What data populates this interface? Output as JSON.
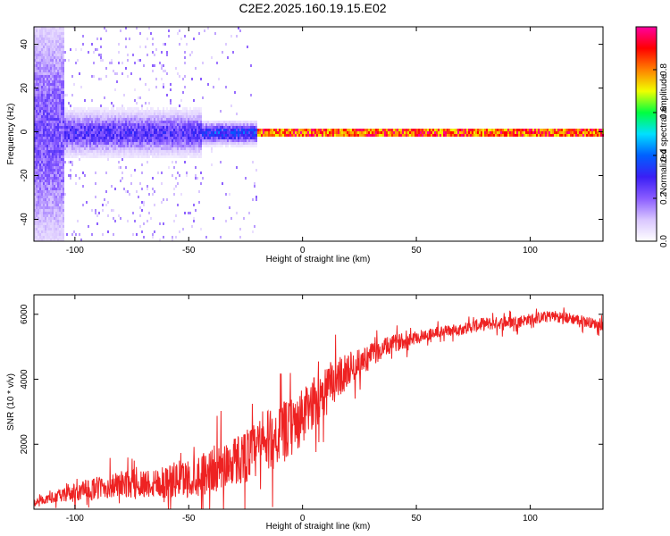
{
  "title": "C2E2.2025.160.19.15.E02",
  "colors": {
    "snr_line": "#ee2222",
    "colormap": [
      "#ffffff",
      "#d9c6ff",
      "#8a5cff",
      "#3a1ff5",
      "#0060ff",
      "#00e0ff",
      "#00ff40",
      "#f0ff00",
      "#ff8000",
      "#ff0000",
      "#ff00a0"
    ]
  },
  "chart_data": [
    {
      "type": "heatmap",
      "name": "spectrogram",
      "xlabel": "Height of straight line (km)",
      "ylabel": "Frequency (Hz)",
      "xlim": [
        -118,
        132
      ],
      "ylim": [
        -50,
        48
      ],
      "x_ticks": [
        -100,
        -50,
        0,
        50,
        100
      ],
      "x_tick_labels": [
        "-100",
        "-50",
        "0",
        "50",
        "100"
      ],
      "y_ticks": [
        -40,
        -20,
        0,
        20,
        40
      ],
      "y_tick_labels": [
        "-40",
        "-20",
        "0",
        "20",
        "40"
      ],
      "description_bands": [
        {
          "x_range": [
            -118,
            -105
          ],
          "freq_spread": 48,
          "peak_amplitude": 0.25
        },
        {
          "x_range": [
            -105,
            -45
          ],
          "freq_spread": 8,
          "peak_amplitude": 0.3
        },
        {
          "x_range": [
            -45,
            -20
          ],
          "freq_spread": 4,
          "peak_amplitude": 0.4
        },
        {
          "x_range": [
            -20,
            132
          ],
          "freq_spread": 1,
          "peak_amplitude": 1.0
        }
      ],
      "colorbar": {
        "label": "Normalized spectral amplitude",
        "range": [
          0,
          1
        ],
        "ticks": [
          0.0,
          0.2,
          0.4,
          0.6,
          0.8
        ],
        "tick_labels": [
          "0.0",
          "0.2",
          "0.4",
          "0.6",
          "0.8"
        ]
      },
      "grid": false
    },
    {
      "type": "line",
      "name": "snr",
      "xlabel": "Height of straight line (km)",
      "ylabel": "SNR (10 * v/v)",
      "xlim": [
        -118,
        132
      ],
      "ylim": [
        0,
        6600
      ],
      "x_ticks": [
        -100,
        -50,
        0,
        50,
        100
      ],
      "x_tick_labels": [
        "-100",
        "-50",
        "0",
        "50",
        "100"
      ],
      "y_ticks": [
        2000,
        4000,
        6000
      ],
      "y_tick_labels": [
        "2000",
        "4000",
        "6000"
      ],
      "x": [
        -118,
        -110,
        -100,
        -90,
        -80,
        -70,
        -60,
        -50,
        -40,
        -30,
        -20,
        -15,
        -10,
        -5,
        0,
        5,
        10,
        15,
        20,
        25,
        30,
        40,
        50,
        60,
        70,
        80,
        90,
        100,
        110,
        120,
        132
      ],
      "y": [
        200,
        350,
        500,
        650,
        750,
        800,
        850,
        950,
        1200,
        1500,
        1800,
        2100,
        2300,
        2500,
        2800,
        3300,
        3700,
        4000,
        4300,
        4500,
        4750,
        5100,
        5300,
        5450,
        5550,
        5700,
        5750,
        5850,
        5950,
        5850,
        5650
      ],
      "noise_amplitude": [
        150,
        250,
        500,
        600,
        700,
        750,
        900,
        1000,
        1200,
        1300,
        1500,
        1600,
        1600,
        1500,
        1500,
        1300,
        1200,
        1100,
        900,
        700,
        600,
        450,
        350,
        300,
        300,
        350,
        300,
        300,
        300,
        300,
        250
      ],
      "grid": false
    }
  ]
}
